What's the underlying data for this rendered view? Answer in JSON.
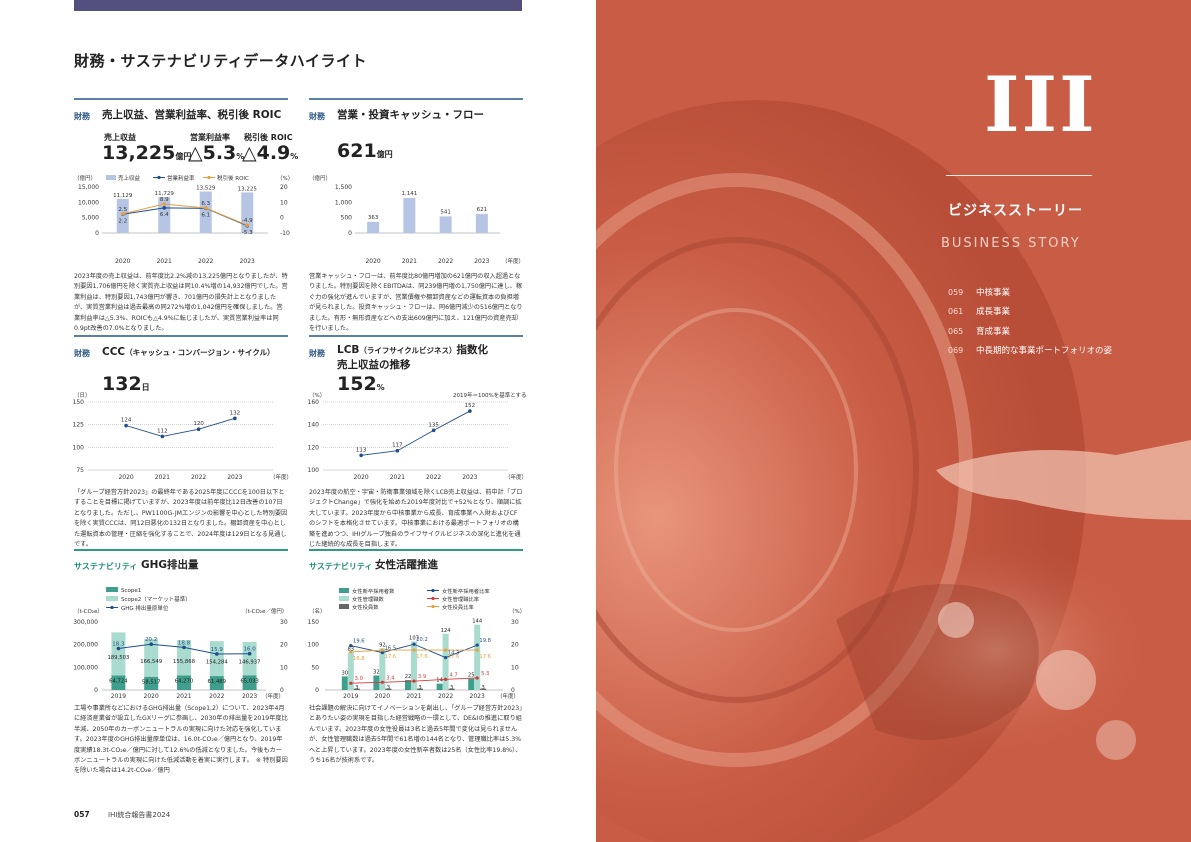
{
  "page": {
    "title": "財務・サステナビリティデータハイライト",
    "footer_page": "057",
    "footer_text": "IHI統合報告書2024"
  },
  "section1": {
    "tag": "財務",
    "title": "売上収益、営業利益率、税引後 ROIC",
    "k1_label": "売上収益",
    "k1_value": "13,225",
    "k1_unit": "億円",
    "k2_label": "営業利益率",
    "k2_value": "△5.3",
    "k2_unit": "%",
    "k3_label": "税引後 ROIC",
    "k3_value": "△4.9",
    "k3_unit": "%",
    "text": "2023年度の売上収益は、前年度比2.2%減の13,225億円となりましたが、特別要因1,706億円を除く実質売上収益は同10.4%増の14,932億円でした。営業利益は、特別要因1,743億円が響き、701億円の損失計上となりましたが、実質営業利益は過去最高の同272%増の1,042億円を確保しました。営業利益率は△5.3%、ROICも△4.9%に転じましたが、実質営業利益率は同0.9pt改善の7.0%となりました。"
  },
  "section2": {
    "tag": "財務",
    "title": "営業・投資キャッシュ・フロー",
    "k_value": "621",
    "k_unit": "億円",
    "text": "営業キャッシュ・フローは、前年度比80億円増加の621億円の収入超過となりました。特別要因を除くEBITDAは、同239億円増の1,750億円に達し、稼ぐ力の強化が進んでいますが、営業債権や棚卸資産などの運転資本の負担増が見られました。投資キャッシュ・フローは、同6億円減少の516億円となりました。有形・無形資産などへの支出609億円に加え、121億円の資産売却を行いました。"
  },
  "section3": {
    "tag": "財務",
    "title": "CCC",
    "title_sub": "（キャッシュ・コンバージョン・サイクル）",
    "k_value": "132",
    "k_unit": "日",
    "text": "「グループ経営方針2023」の最終年である2025年度にCCCを100日以下とすることを目標に掲げていますが、2023年度は前年度比12日改善の107日となりました。ただし、PW1100G-JMエンジンの影響を中心とした特別要因を除く実質CCCは、同12日悪化の132日となりました。棚卸資産を中心とした運転資本の管理・圧縮を強化することで、2024年度は129日となる見通しです。"
  },
  "section4": {
    "tag": "財務",
    "title": "LCB",
    "title_sub": "（ライフサイクルビジネス）",
    "title_after": "指数化",
    "title_line2": "売上収益の推移",
    "k_value": "152",
    "k_unit": "%",
    "note": "2019年＝100%を基準とする",
    "text": "2023年度の航空・宇宙・防衛事業領域を除くLCB売上収益は、前中計「プロジェクトChange」で強化を始めた2019年度対比で+52%となり、順調に拡大しています。2023年度から中核事業から成長、育成事業へ入財およびCFのシフトを本格化させています。中核事業における最適ポートフォリオの構築を進めつつ、IHIグループ独自のライフサイクルビジネスの深化と進化を通じた継続的な成長を目指します。"
  },
  "section5": {
    "tag": "サステナビリティ",
    "title": "GHG排出量",
    "text": "工場や事業所などにおけるGHG排出量（Scope1,2）について、2023年4月に経済産業省が設立したGXリーグに参画し、2030年の排出量を2019年度比半減、2050年のカーボンニュートラルの実現に向けた対応を強化しています。2023年度のGHG排出量原単位は、16.0t-CO₂e／億円となり、2019年度実績18.3t-CO₂e／億円に対して12.6%の低減となりました。今後もカーボンニュートラルの実現に向けた低減活動を着実に実行します。　※ 特別要因を除いた場合は14.2t-CO₂e／億円"
  },
  "section6": {
    "tag": "サステナビリティ",
    "title": "女性活躍推進",
    "text": "社会課題の解決に向けてイノベーションを創出し、「グループ経営方針2023」とありたい姿の実現を目指した経営戦略の一環として、DE&Iの推進に取り組んでいます。2023年度の女性役員は3名と過去5年間で変化は見られませんが、女性管理職数は過去5年間で61名増の144名となり、管理職比率は5.3%へと上昇しています。2023年度の女性新卒者数は25名（女性比率19.8%）、うち16名が技術系です。"
  },
  "chart_data": [
    {
      "type": "bar",
      "id": "revenue_margin_roic",
      "categories": [
        "2020",
        "2021",
        "2022",
        "2023"
      ],
      "series": [
        {
          "name": "売上収益",
          "axis": "left",
          "values": [
            11129,
            11729,
            13529,
            13225
          ]
        },
        {
          "name": "営業利益率",
          "axis": "right",
          "values": [
            2.2,
            6.4,
            6.1,
            -5.3
          ]
        },
        {
          "name": "税引後 ROIC",
          "axis": "right",
          "values": [
            2.5,
            8.9,
            6.3,
            -4.9
          ]
        }
      ],
      "ylabel_left": "（億円）",
      "ylabel_right": "（%）",
      "xlabel": "",
      "ylim_left": [
        0,
        15000
      ],
      "ylim_right": [
        -10,
        20
      ],
      "yticks_left": [
        "15,000",
        "10,000",
        "5,000",
        "0"
      ],
      "yticks_right": [
        "20",
        "10",
        "0",
        "-10"
      ],
      "value_labels": [
        "11,129",
        "11,729",
        "13,529",
        "13,225"
      ],
      "colors": {
        "bar": "#b6c5e3",
        "line1": "#1f4e8c",
        "line2": "#e8a040"
      }
    },
    {
      "type": "bar",
      "id": "cash_flow",
      "categories": [
        "2020",
        "2021",
        "2022",
        "2023"
      ],
      "values": [
        363,
        1141,
        541,
        621
      ],
      "value_labels": [
        "363",
        "1,141",
        "541",
        "621"
      ],
      "ylabel": "（億円）",
      "xlabel": "（年度）",
      "ylim": [
        0,
        1500
      ],
      "yticks": [
        "1,500",
        "1,000",
        "500",
        "0"
      ],
      "colors": {
        "bar": "#b6c5e3"
      }
    },
    {
      "type": "line",
      "id": "ccc",
      "categories": [
        "2020",
        "2021",
        "2022",
        "2023"
      ],
      "values": [
        124,
        112,
        120,
        132
      ],
      "ylabel": "（日）",
      "xlabel": "（年度）",
      "ylim": [
        75,
        150
      ],
      "yticks": [
        "150",
        "125",
        "100",
        "75"
      ],
      "colors": {
        "line": "#1f4e8c"
      }
    },
    {
      "type": "line",
      "id": "lcb",
      "categories": [
        "2020",
        "2021",
        "2022",
        "2023"
      ],
      "values": [
        113,
        117,
        135,
        152
      ],
      "ylabel": "（%）",
      "xlabel": "（年度）",
      "ylim": [
        100,
        160
      ],
      "yticks": [
        "160",
        "140",
        "120",
        "100"
      ],
      "colors": {
        "line": "#1f4e8c"
      }
    },
    {
      "type": "bar",
      "id": "ghg",
      "categories": [
        "2019",
        "2020",
        "2021",
        "2022",
        "2023"
      ],
      "series": [
        {
          "name": "Scope1",
          "values": [
            64724,
            58517,
            64270,
            61489,
            65033
          ],
          "labels": [
            "64,724",
            "58,517",
            "64,270",
            "61,489",
            "65,033"
          ]
        },
        {
          "name": "Scope2（マーケット基準）",
          "values": [
            189503,
            166549,
            155868,
            154284,
            146937
          ],
          "labels": [
            "189,503",
            "166,549",
            "155,868",
            "154,284",
            "146,937"
          ]
        },
        {
          "name": "GHG 排出量原単位",
          "axis": "right",
          "values": [
            18.3,
            20.2,
            18.8,
            15.9,
            16.0
          ]
        }
      ],
      "ylabel_left": "（t-CO₂e）",
      "ylabel_right": "（t-CO₂e／億円）",
      "xlabel": "（年度）",
      "ylim_left": [
        0,
        300000
      ],
      "ylim_right": [
        0,
        30
      ],
      "yticks_left": [
        "300,000",
        "200,000",
        "100,000",
        "0"
      ],
      "yticks_right": [
        "30",
        "20",
        "10",
        "0"
      ],
      "colors": {
        "scope1": "#3f9e8c",
        "scope2": "#a9dccf",
        "line": "#1f4e8c"
      }
    },
    {
      "type": "bar",
      "id": "women",
      "categories": [
        "2019",
        "2020",
        "2021",
        "2022",
        "2023"
      ],
      "series": [
        {
          "name": "女性新卒採用者数",
          "values": [
            30,
            32,
            22,
            14,
            25
          ]
        },
        {
          "name": "女性管理職数",
          "values": [
            83,
            92,
            107,
            124,
            144
          ]
        },
        {
          "name": "女性役員数",
          "values": [
            3,
            3,
            3,
            3,
            3
          ]
        },
        {
          "name": "女性新卒採用者比率",
          "axis": "right",
          "values": [
            19.6,
            16.5,
            20.2,
            14.3,
            19.8
          ]
        },
        {
          "name": "女性管理職比率",
          "axis": "right",
          "values": [
            3.0,
            3.4,
            3.9,
            4.7,
            5.3
          ]
        },
        {
          "name": "女性役員比率",
          "axis": "right",
          "values": [
            16.8,
            17.6,
            17.6,
            17.6,
            17.6
          ]
        }
      ],
      "ylabel_left": "（名）",
      "ylabel_right": "（%）",
      "xlabel": "（年度）",
      "ylim_left": [
        0,
        150
      ],
      "ylim_right": [
        0,
        30
      ],
      "yticks_left": [
        "150",
        "100",
        "50",
        "0"
      ],
      "yticks_right": [
        "30",
        "20",
        "10",
        "0"
      ],
      "colors": {
        "hires": "#3f9e8c",
        "managers": "#a9dccf",
        "officers": "#666666",
        "l1": "#1f4e8c",
        "l2": "#d43a3a",
        "l3": "#e8a040"
      }
    }
  ],
  "right": {
    "roman": "III",
    "jp_title": "ビジネスストーリー",
    "en_title": "BUSINESS STORY",
    "toc": [
      {
        "page": "059",
        "label": "中核事業"
      },
      {
        "page": "061",
        "label": "成長事業"
      },
      {
        "page": "065",
        "label": "育成事業"
      },
      {
        "page": "069",
        "label": "中長期的な事業ポートフォリオの姿"
      }
    ]
  }
}
